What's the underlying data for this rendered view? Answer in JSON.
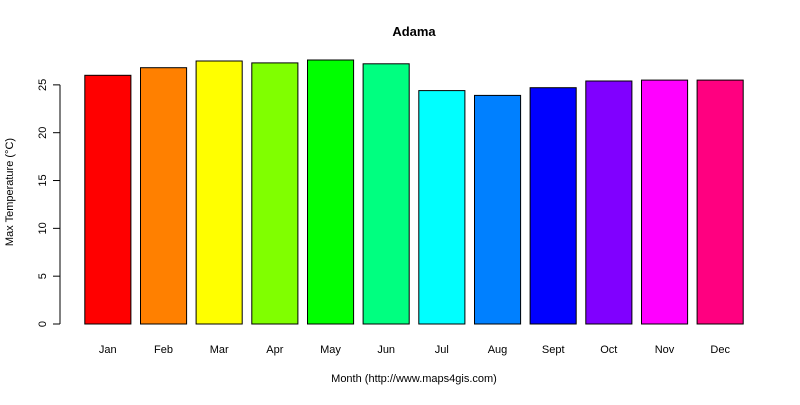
{
  "chart_data": {
    "type": "bar",
    "title": "Adama",
    "xlabel": "Month (http://www.maps4gis.com)",
    "ylabel": "Max Temperature (°C)",
    "categories": [
      "Jan",
      "Feb",
      "Mar",
      "Apr",
      "May",
      "Jun",
      "Jul",
      "Aug",
      "Sept",
      "Oct",
      "Nov",
      "Dec"
    ],
    "values": [
      26.0,
      26.8,
      27.5,
      27.3,
      27.6,
      27.2,
      24.4,
      23.9,
      24.7,
      25.4,
      25.5,
      25.5
    ],
    "colors": [
      "#ff0000",
      "#ff8000",
      "#ffff00",
      "#80ff00",
      "#00ff00",
      "#00ff80",
      "#00ffff",
      "#0080ff",
      "#0000ff",
      "#8000ff",
      "#ff00ff",
      "#ff0080"
    ],
    "yticks": [
      0,
      5,
      10,
      15,
      20,
      25
    ],
    "ylim": [
      0,
      27.6
    ],
    "grid": false,
    "legend": "none"
  }
}
